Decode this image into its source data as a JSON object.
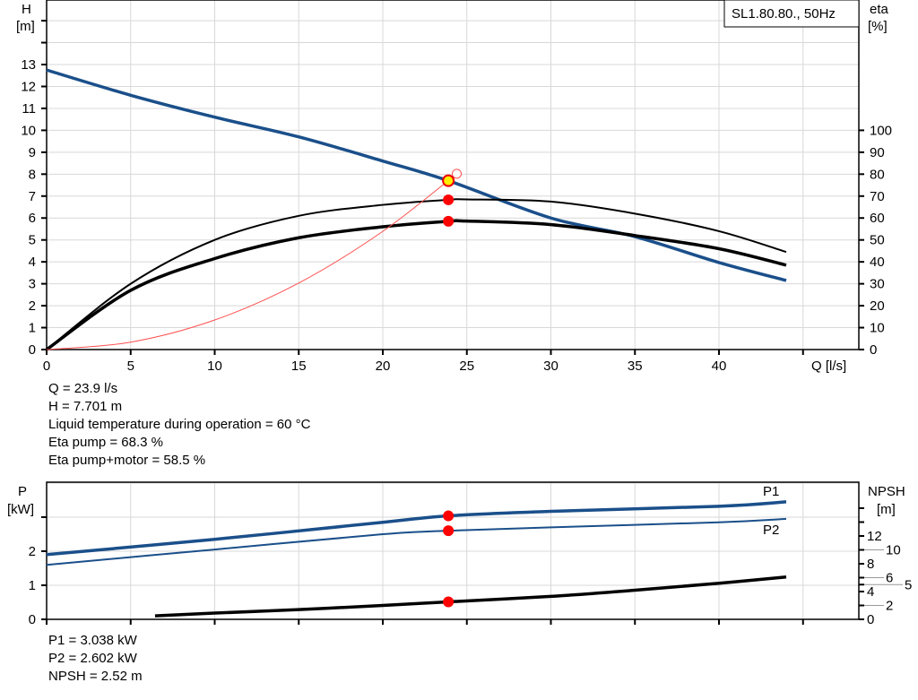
{
  "chart_data": [
    {
      "type": "line",
      "legend_box": "SL1.80.80., 50Hz",
      "xlabel": "Q [l/s]",
      "ylabel_left": [
        "H",
        "[m]"
      ],
      "ylabel_right": [
        "eta",
        "[%]"
      ],
      "xlim": [
        0,
        45
      ],
      "ylim_left": [
        0,
        15
      ],
      "ylim_right": [
        0,
        150
      ],
      "x_ticks": [
        0,
        5,
        10,
        15,
        20,
        25,
        30,
        35,
        40
      ],
      "y_ticks_left": [
        0,
        1,
        2,
        3,
        4,
        5,
        6,
        7,
        8,
        9,
        10,
        11,
        12,
        13
      ],
      "y_ticks_right": [
        0,
        10,
        20,
        30,
        40,
        50,
        60,
        70,
        80,
        90,
        100
      ],
      "grid": true,
      "series": [
        {
          "key": "H",
          "axis": "left",
          "color": "#1a4f8a",
          "x": [
            0,
            5,
            10,
            15,
            20,
            23.9,
            30,
            35,
            40,
            44
          ],
          "y": [
            12.75,
            11.6,
            10.6,
            9.7,
            8.6,
            7.701,
            6.0,
            5.15,
            3.97,
            3.15
          ]
        },
        {
          "key": "eta_pump",
          "axis": "right",
          "color": "#000000",
          "x": [
            0,
            5,
            10,
            15,
            20,
            23.9,
            25,
            30,
            35,
            40,
            44
          ],
          "y": [
            0,
            30,
            50,
            61,
            66,
            68.3,
            68.5,
            67.5,
            62,
            54,
            44.5
          ]
        },
        {
          "key": "eta_pump_motor",
          "axis": "right",
          "color": "#000000",
          "x": [
            0,
            5,
            10,
            15,
            20,
            23.9,
            25,
            30,
            35,
            40,
            44
          ],
          "y": [
            0,
            27,
            41.5,
            51,
            56,
            58.5,
            58.6,
            57,
            52,
            46,
            38.5
          ]
        },
        {
          "key": "system",
          "axis": "left",
          "color": "#ff5050",
          "x": [
            0,
            5,
            10,
            15,
            20,
            24.4
          ],
          "y": [
            0,
            0.337,
            1.348,
            3.033,
            5.392,
            8.02
          ]
        }
      ],
      "operating_point": {
        "Q": 23.9,
        "H": 7.701,
        "eta_pump": 68.3,
        "eta_pump_motor": 58.5
      }
    },
    {
      "type": "line",
      "ylabel_left": [
        "P",
        "[kW]"
      ],
      "ylabel_right": [
        "NPSH",
        "[m]"
      ],
      "xlim": [
        0,
        45
      ],
      "ylim_left": [
        0,
        4
      ],
      "ylim_right": [
        0,
        12
      ],
      "y_ticks_left": [
        0,
        1,
        2
      ],
      "y_ticks_right": [
        0,
        2,
        4,
        5,
        6,
        8,
        10,
        12
      ],
      "grid": true,
      "series": [
        {
          "name": "P1",
          "axis": "left",
          "color": "#1a4f8a",
          "x": [
            0,
            10,
            20,
            23.9,
            30,
            40,
            44
          ],
          "y": [
            1.9,
            2.35,
            2.85,
            3.038,
            3.17,
            3.32,
            3.45
          ]
        },
        {
          "name": "P2",
          "axis": "left",
          "color": "#1a4f8a",
          "x": [
            0,
            10,
            20,
            23.9,
            30,
            40,
            44
          ],
          "y": [
            1.6,
            2.05,
            2.5,
            2.602,
            2.7,
            2.85,
            2.95
          ]
        },
        {
          "key": "NPSH",
          "axis": "right",
          "color": "#000000",
          "x": [
            6.45,
            10,
            15,
            20,
            23.9,
            30,
            35,
            40,
            44
          ],
          "y": [
            0.5,
            0.9,
            1.4,
            2.0,
            2.52,
            3.3,
            4.2,
            5.2,
            6.1
          ]
        }
      ],
      "operating_point": {
        "Q": 23.9,
        "P1": 3.038,
        "P2": 2.602,
        "NPSH": 2.52
      }
    }
  ],
  "info_top": [
    "Q = 23.9 l/s",
    "H = 7.701 m",
    "Liquid temperature during operation = 60 °C",
    "Eta pump = 68.3 %",
    "Eta pump+motor = 58.5 %"
  ],
  "info_bottom": [
    "P1 = 3.038 kW",
    "P2 = 2.602 kW",
    "NPSH = 2.52 m"
  ]
}
